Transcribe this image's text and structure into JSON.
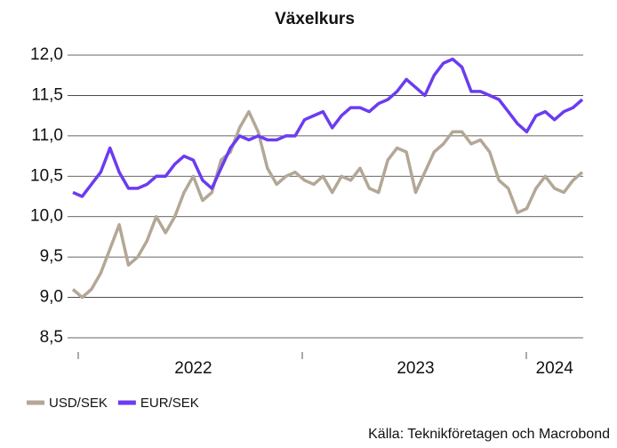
{
  "chart_data": {
    "type": "line",
    "title": "Växelkurs",
    "source": "Källa: Teknikföretagen och Macrobond",
    "categories": [
      null,
      null,
      null,
      null,
      null,
      null,
      null,
      null,
      null,
      null,
      null,
      null,
      null,
      "2022",
      null,
      null,
      null,
      null,
      null,
      null,
      null,
      null,
      null,
      null,
      null,
      null,
      null,
      null,
      null,
      null,
      null,
      null,
      null,
      null,
      null,
      null,
      null,
      "2023",
      null,
      null,
      null,
      null,
      null,
      null,
      null,
      null,
      null,
      null,
      null,
      null,
      null,
      null,
      "2024",
      null,
      null,
      null
    ],
    "series": [
      {
        "name": "USD/SEK",
        "color": "#b3a796",
        "values": [
          9.1,
          9.0,
          9.1,
          9.3,
          9.6,
          9.9,
          9.4,
          9.5,
          9.7,
          10.0,
          9.8,
          10.0,
          10.3,
          10.5,
          10.2,
          10.3,
          10.7,
          10.8,
          11.1,
          11.3,
          11.05,
          10.6,
          10.4,
          10.5,
          10.55,
          10.45,
          10.4,
          10.5,
          10.3,
          10.5,
          10.45,
          10.6,
          10.35,
          10.3,
          10.7,
          10.85,
          10.8,
          10.3,
          10.55,
          10.8,
          10.9,
          11.05,
          11.05,
          10.9,
          10.95,
          10.8,
          10.45,
          10.35,
          10.05,
          10.1,
          10.35,
          10.5,
          10.35,
          10.3,
          10.45,
          10.55
        ]
      },
      {
        "name": "EUR/SEK",
        "color": "#6b3cf0",
        "values": [
          10.3,
          10.25,
          10.4,
          10.55,
          10.85,
          10.55,
          10.35,
          10.35,
          10.4,
          10.5,
          10.5,
          10.65,
          10.75,
          10.7,
          10.45,
          10.35,
          10.6,
          10.85,
          11.0,
          10.95,
          11.0,
          10.95,
          10.95,
          11.0,
          11.0,
          11.2,
          11.25,
          11.3,
          11.1,
          11.25,
          11.35,
          11.35,
          11.3,
          11.4,
          11.45,
          11.55,
          11.7,
          11.6,
          11.5,
          11.75,
          11.9,
          11.95,
          11.85,
          11.55,
          11.55,
          11.5,
          11.45,
          11.3,
          11.15,
          11.05,
          11.25,
          11.3,
          11.2,
          11.3,
          11.35,
          11.45
        ]
      }
    ],
    "ylim": [
      8.5,
      12.0
    ],
    "yticks": [
      {
        "value": 8.5,
        "label": "8,5"
      },
      {
        "value": 9.0,
        "label": "9,0"
      },
      {
        "value": 9.5,
        "label": "9,5"
      },
      {
        "value": 10.0,
        "label": "10,0"
      },
      {
        "value": 10.5,
        "label": "10,5"
      },
      {
        "value": 11.0,
        "label": "11,0"
      },
      {
        "value": 11.5,
        "label": "11,5"
      },
      {
        "value": 12.0,
        "label": "12,0"
      }
    ],
    "grid": true,
    "legend": "bottom-left"
  }
}
